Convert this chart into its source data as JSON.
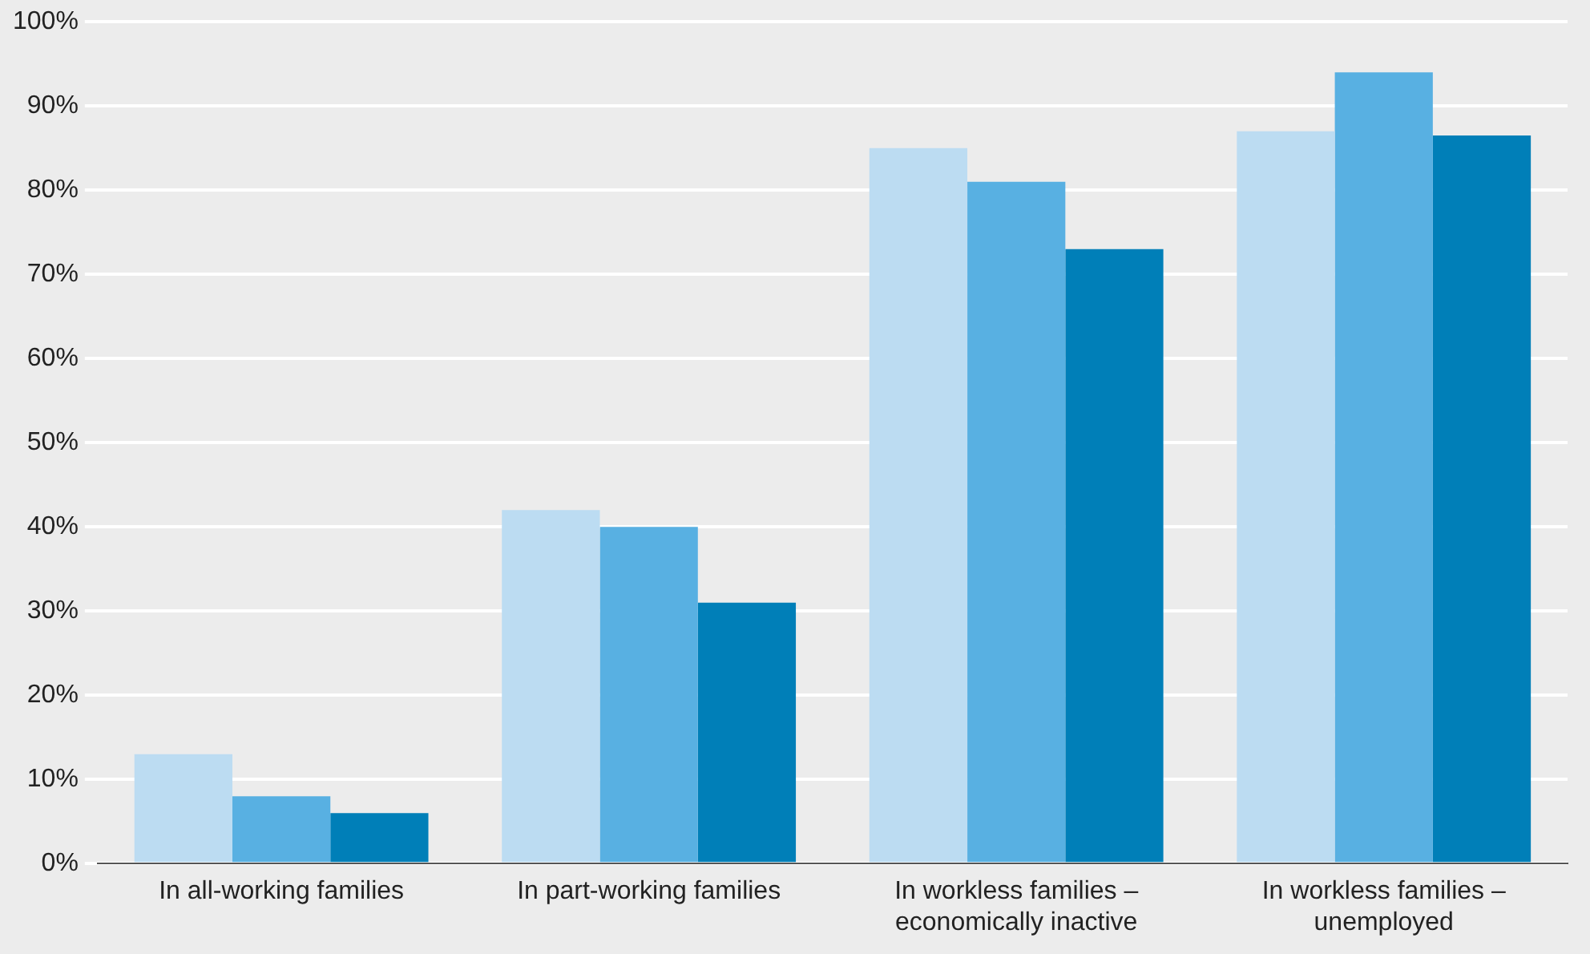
{
  "chart_data": {
    "type": "bar",
    "categories": [
      "In all-working families",
      "In part-working families",
      "In workless families – economically inactive",
      "In workless families – unemployed"
    ],
    "series": [
      {
        "color": "#bcdcf2",
        "values": [
          13,
          42,
          85,
          87
        ]
      },
      {
        "color": "#58b0e2",
        "values": [
          8,
          40,
          81,
          94
        ]
      },
      {
        "color": "#007fb8",
        "values": [
          6,
          31,
          73,
          86.5
        ]
      }
    ],
    "ylim": [
      0,
      100
    ],
    "yticks": [
      {
        "value": 0,
        "label": "0%"
      },
      {
        "value": 10,
        "label": "10%"
      },
      {
        "value": 20,
        "label": "20%"
      },
      {
        "value": 30,
        "label": "30%"
      },
      {
        "value": 40,
        "label": "40%"
      },
      {
        "value": 50,
        "label": "50%"
      },
      {
        "value": 60,
        "label": "60%"
      },
      {
        "value": 70,
        "label": "70%"
      },
      {
        "value": 80,
        "label": "80%"
      },
      {
        "value": 90,
        "label": "90%"
      },
      {
        "value": 100,
        "label": "100%"
      }
    ],
    "grid": "y",
    "legend": false
  }
}
